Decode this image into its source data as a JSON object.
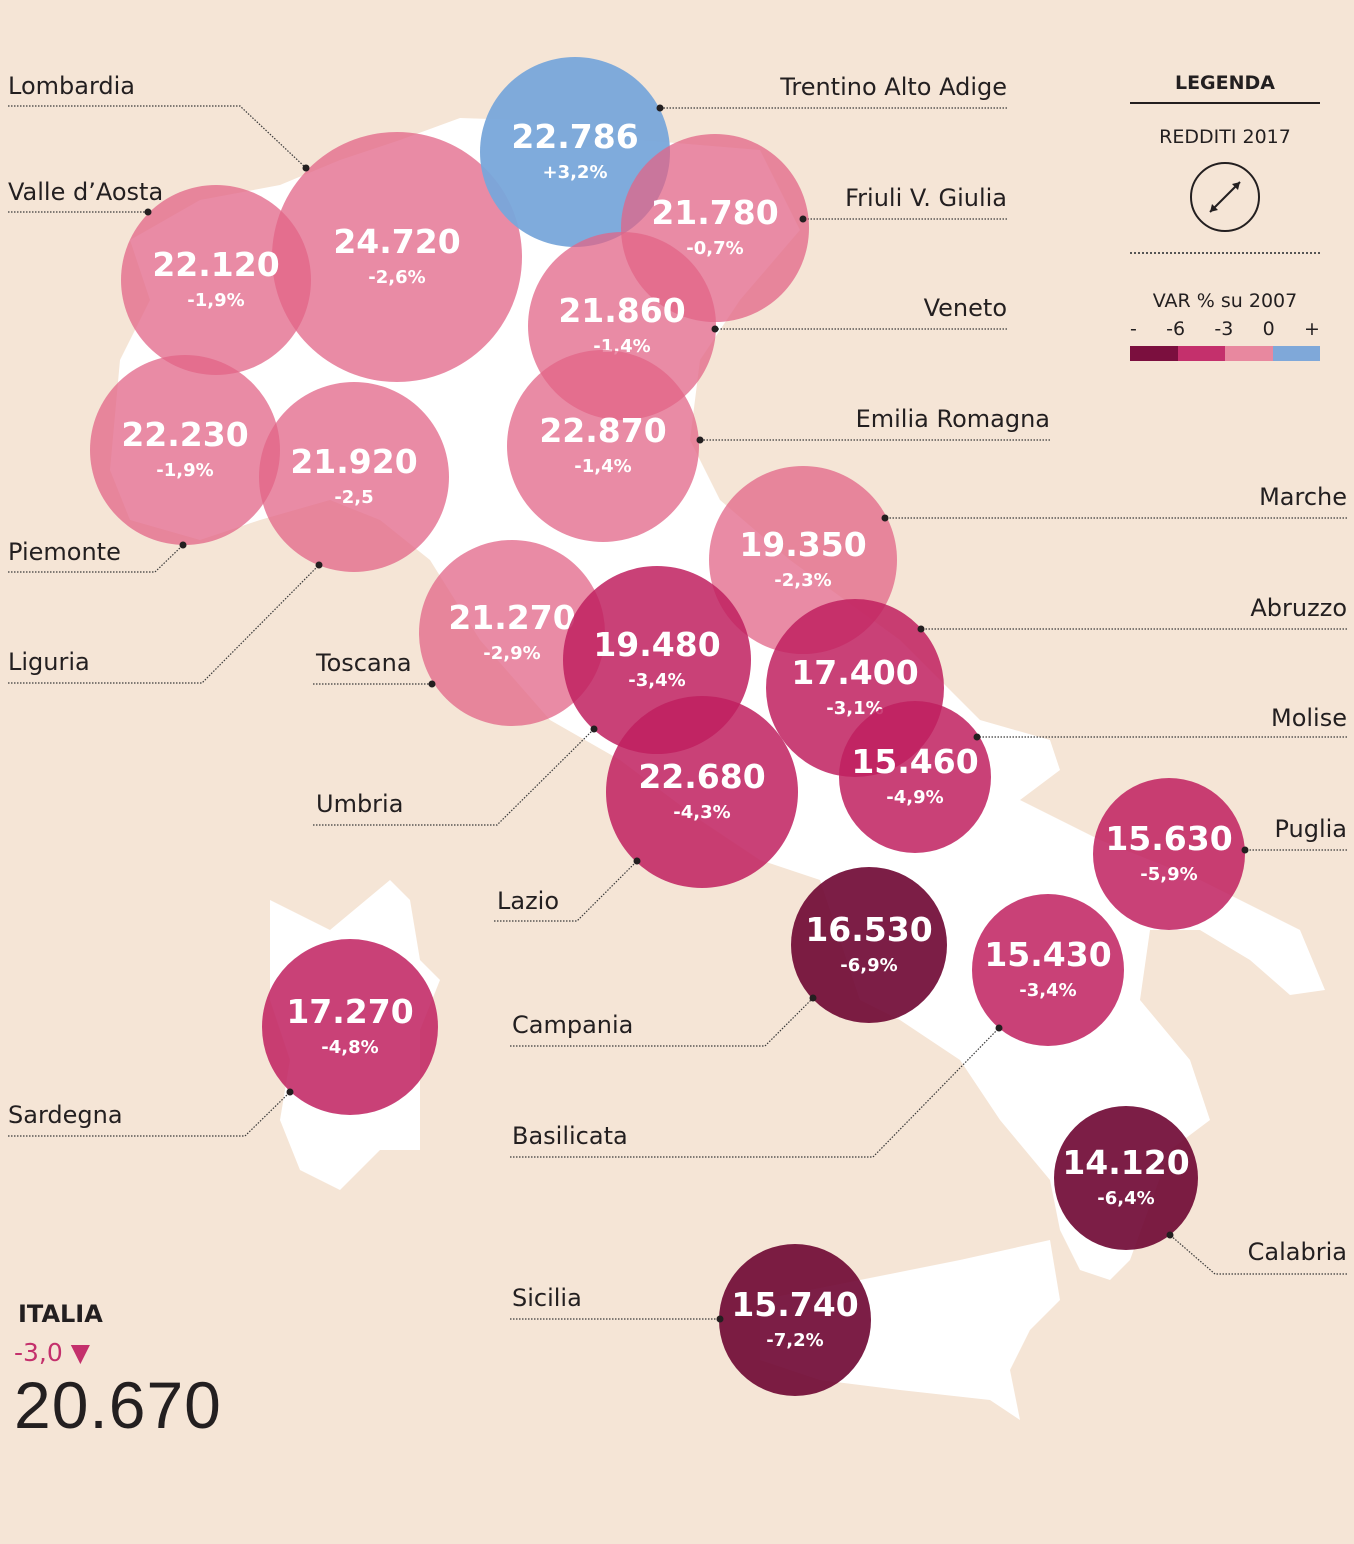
{
  "legend": {
    "title": "LEGENDA",
    "size_label": "REDDITI 2017",
    "var_label": "VAR % su 2007",
    "ticks": [
      "-",
      "-6",
      "-3",
      "0",
      "+"
    ],
    "colors": [
      "#7b0f3e",
      "#c4306c",
      "#e8889f",
      "#7fa8d9"
    ]
  },
  "italia": {
    "name": "ITALIA",
    "var": "-3,0",
    "value": "20.670",
    "trend_icon": "triangle-down"
  },
  "regions": [
    {
      "name": "Lombardia",
      "value": "24.720",
      "var": "-2,6%",
      "cls": "light"
    },
    {
      "name": "Trentino Alto Adige",
      "value": "22.786",
      "var": "+3,2%",
      "cls": "blue"
    },
    {
      "name": "Friuli V. Giulia",
      "value": "21.780",
      "var": "-0,7%",
      "cls": "light"
    },
    {
      "name": "Veneto",
      "value": "21.860",
      "var": "-1,4%",
      "cls": "light"
    },
    {
      "name": "Valle d’Aosta",
      "value": "22.120",
      "var": "-1,9%",
      "cls": "light"
    },
    {
      "name": "Piemonte",
      "value": "22.230",
      "var": "-1,9%",
      "cls": "light"
    },
    {
      "name": "Liguria",
      "value": "21.920",
      "var": "-2,5",
      "cls": "light"
    },
    {
      "name": "Emilia Romagna",
      "value": "22.870",
      "var": "-1,4%",
      "cls": "light"
    },
    {
      "name": "Marche",
      "value": "19.350",
      "var": "-2,3%",
      "cls": "light"
    },
    {
      "name": "Toscana",
      "value": "21.270",
      "var": "-2,9%",
      "cls": "light"
    },
    {
      "name": "Umbria",
      "value": "19.480",
      "var": "-3,4%",
      "cls": "mid"
    },
    {
      "name": "Abruzzo",
      "value": "17.400",
      "var": "-3,1%",
      "cls": "mid"
    },
    {
      "name": "Molise",
      "value": "15.460",
      "var": "-4,9%",
      "cls": "mid"
    },
    {
      "name": "Lazio",
      "value": "22.680",
      "var": "-4,3%",
      "cls": "mid"
    },
    {
      "name": "Puglia",
      "value": "15.630",
      "var": "-5,9%",
      "cls": "mid"
    },
    {
      "name": "Campania",
      "value": "16.530",
      "var": "-6,9%",
      "cls": "dark"
    },
    {
      "name": "Basilicata",
      "value": "15.430",
      "var": "-3,4%",
      "cls": "mid"
    },
    {
      "name": "Sardegna",
      "value": "17.270",
      "var": "-4,8%",
      "cls": "mid"
    },
    {
      "name": "Calabria",
      "value": "14.120",
      "var": "-6,4%",
      "cls": "dark"
    },
    {
      "name": "Sicilia",
      "value": "15.740",
      "var": "-7,2%",
      "cls": "dark"
    }
  ]
}
